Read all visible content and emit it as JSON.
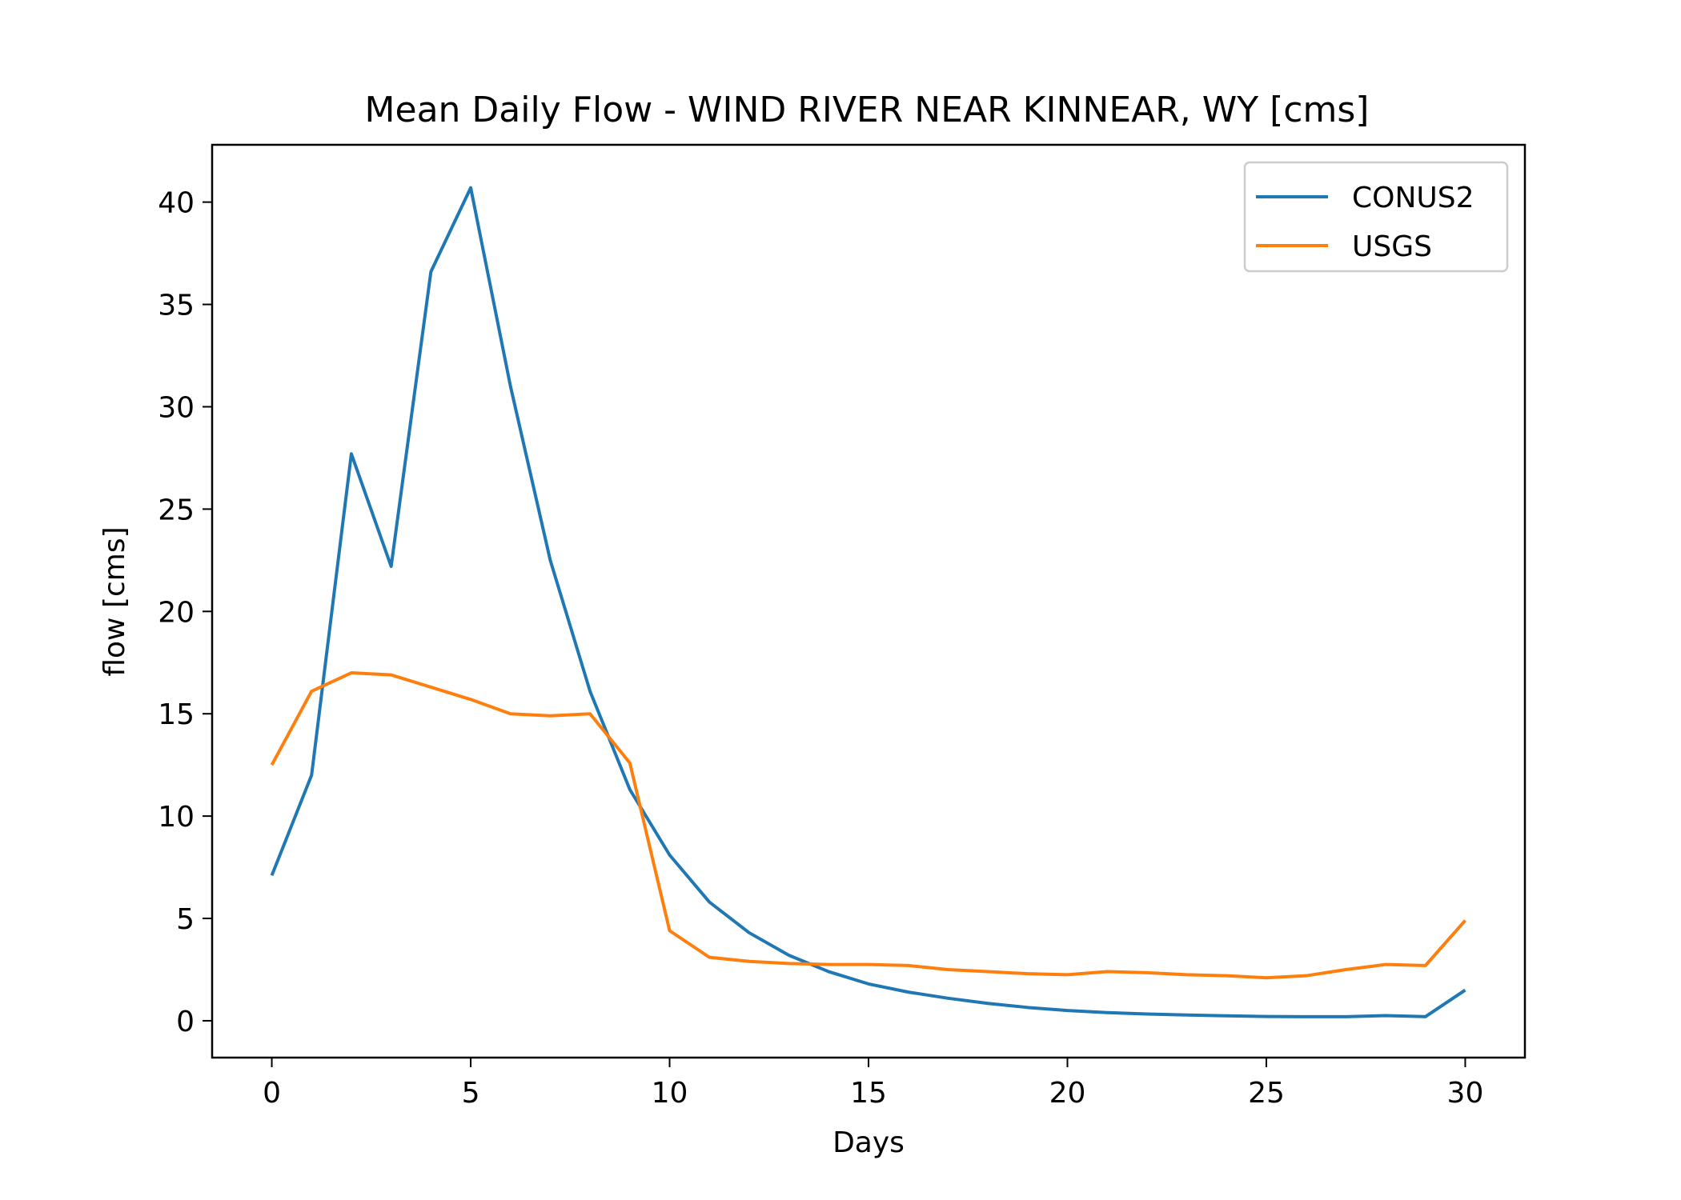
{
  "chart_data": {
    "type": "line",
    "title": "Mean Daily Flow - WIND RIVER NEAR KINNEAR, WY [cms]",
    "xlabel": "Days",
    "ylabel": "flow [cms]",
    "xlim": [
      -1.5,
      31.5
    ],
    "ylim": [
      -1.8,
      42.8
    ],
    "xticks": [
      0,
      5,
      10,
      15,
      20,
      25,
      30
    ],
    "yticks": [
      0,
      5,
      10,
      15,
      20,
      25,
      30,
      35,
      40
    ],
    "grid": false,
    "legend_position": "top-right",
    "x": [
      0,
      1,
      2,
      3,
      4,
      5,
      6,
      7,
      8,
      9,
      10,
      11,
      12,
      13,
      14,
      15,
      16,
      17,
      18,
      19,
      20,
      21,
      22,
      23,
      24,
      25,
      26,
      27,
      28,
      29,
      30
    ],
    "series": [
      {
        "name": "CONUS2",
        "color": "#1f77b4",
        "values": [
          7.1,
          12.0,
          27.7,
          22.2,
          36.6,
          40.7,
          31.0,
          22.5,
          16.1,
          11.3,
          8.1,
          5.8,
          4.3,
          3.2,
          2.4,
          1.8,
          1.4,
          1.1,
          0.85,
          0.65,
          0.5,
          0.4,
          0.33,
          0.28,
          0.24,
          0.21,
          0.2,
          0.2,
          0.25,
          0.2,
          1.5
        ]
      },
      {
        "name": "USGS",
        "color": "#ff7f0e",
        "values": [
          12.5,
          16.1,
          17.0,
          16.9,
          16.3,
          15.7,
          15.0,
          14.9,
          15.0,
          12.6,
          4.4,
          3.1,
          2.9,
          2.8,
          2.75,
          2.75,
          2.7,
          2.5,
          2.4,
          2.3,
          2.25,
          2.4,
          2.35,
          2.25,
          2.2,
          2.1,
          2.2,
          2.5,
          2.75,
          2.7,
          4.9
        ]
      }
    ]
  }
}
